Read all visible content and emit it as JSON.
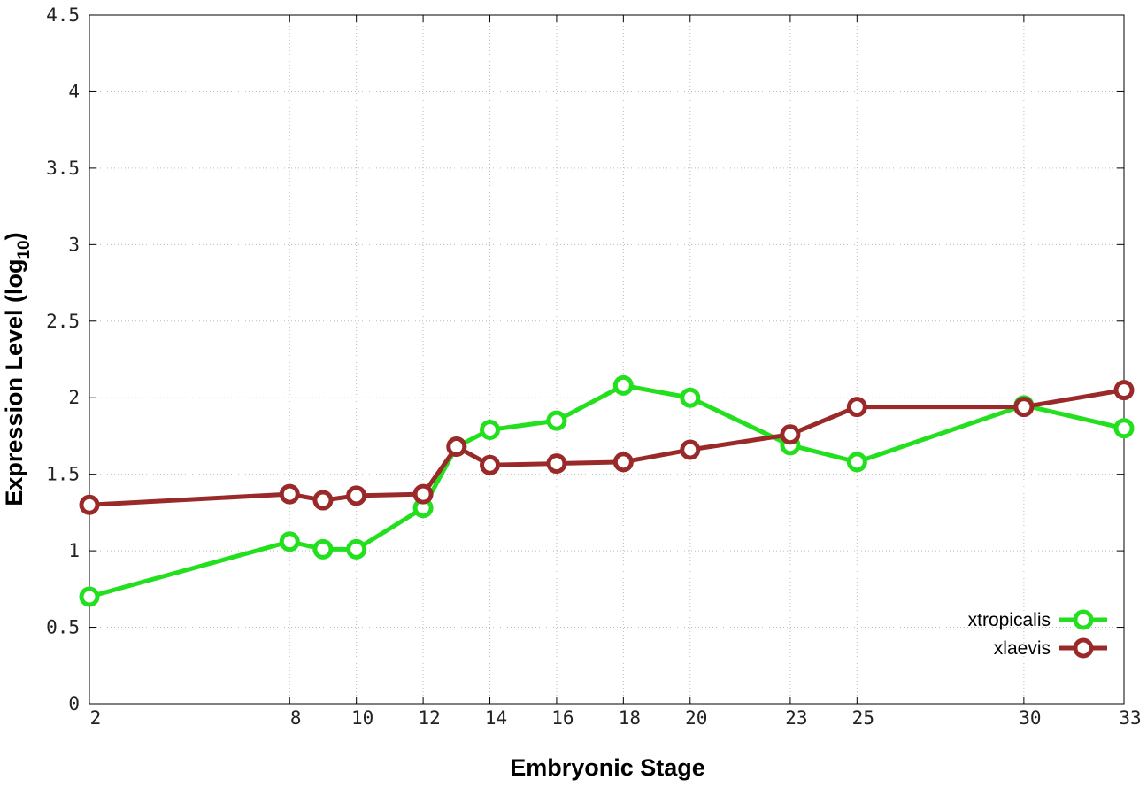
{
  "chart_data": {
    "type": "line",
    "xlabel": "Embryonic Stage",
    "ylabel": "Expression Level (log",
    "ylabel_sub": "10",
    "ylabel_close": ")",
    "ylim": [
      0,
      4.5
    ],
    "y_ticks": [
      "0",
      "0.5",
      "1",
      "1.5",
      "2",
      "2.5",
      "3",
      "3.5",
      "4",
      "4.5"
    ],
    "y_tick_values": [
      0,
      0.5,
      1,
      1.5,
      2,
      2.5,
      3,
      3.5,
      4,
      4.5
    ],
    "x": [
      2,
      8,
      9,
      10,
      12,
      13,
      14,
      16,
      18,
      20,
      23,
      25,
      30,
      33
    ],
    "x_tick_values": [
      2,
      8,
      10,
      12,
      14,
      16,
      18,
      20,
      23,
      25,
      30,
      33
    ],
    "x_ticks": [
      "2",
      "8",
      "10",
      "12",
      "14",
      "16",
      "18",
      "20",
      "23",
      "25",
      "30",
      "33"
    ],
    "grid": true,
    "legend_position": "bottom-right",
    "series": [
      {
        "name": "xtropicalis",
        "color": "#22e01e",
        "values": [
          0.7,
          1.06,
          1.01,
          1.01,
          1.28,
          1.68,
          1.79,
          1.85,
          2.08,
          2.0,
          1.69,
          1.58,
          1.95,
          1.8
        ]
      },
      {
        "name": "xlaevis",
        "color": "#9a2a2a",
        "values": [
          1.3,
          1.37,
          1.33,
          1.36,
          1.37,
          1.68,
          1.56,
          1.57,
          1.58,
          1.66,
          1.76,
          1.94,
          1.94,
          2.05
        ]
      }
    ]
  }
}
